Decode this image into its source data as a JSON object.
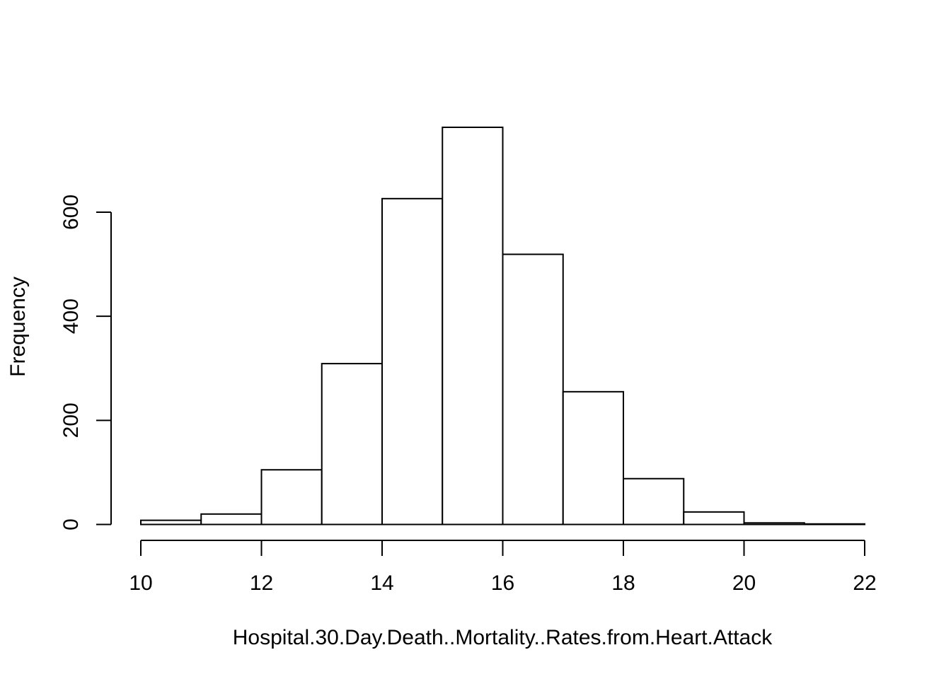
{
  "chart_data": {
    "type": "bar",
    "subtype": "histogram",
    "title": "",
    "xlabel": "Hospital.30.Day.Death..Mortality..Rates.from.Heart.Attack",
    "ylabel": "Frequency",
    "bins": [
      {
        "from": 10,
        "to": 11,
        "count": 8
      },
      {
        "from": 11,
        "to": 12,
        "count": 20
      },
      {
        "from": 12,
        "to": 13,
        "count": 105
      },
      {
        "from": 13,
        "to": 14,
        "count": 309
      },
      {
        "from": 14,
        "to": 15,
        "count": 626
      },
      {
        "from": 15,
        "to": 16,
        "count": 763
      },
      {
        "from": 16,
        "to": 17,
        "count": 519
      },
      {
        "from": 17,
        "to": 18,
        "count": 255
      },
      {
        "from": 18,
        "to": 19,
        "count": 88
      },
      {
        "from": 19,
        "to": 20,
        "count": 24
      },
      {
        "from": 20,
        "to": 21,
        "count": 3
      },
      {
        "from": 21,
        "to": 22,
        "count": 1
      }
    ],
    "x_ticks": [
      10,
      12,
      14,
      16,
      18,
      20,
      22
    ],
    "y_ticks": [
      0,
      200,
      400,
      600
    ],
    "xlim": [
      10,
      22
    ],
    "ylim": [
      0,
      763
    ],
    "grid": false,
    "legend": "none",
    "bar_fill": "#ffffff",
    "bar_stroke": "#000000"
  }
}
